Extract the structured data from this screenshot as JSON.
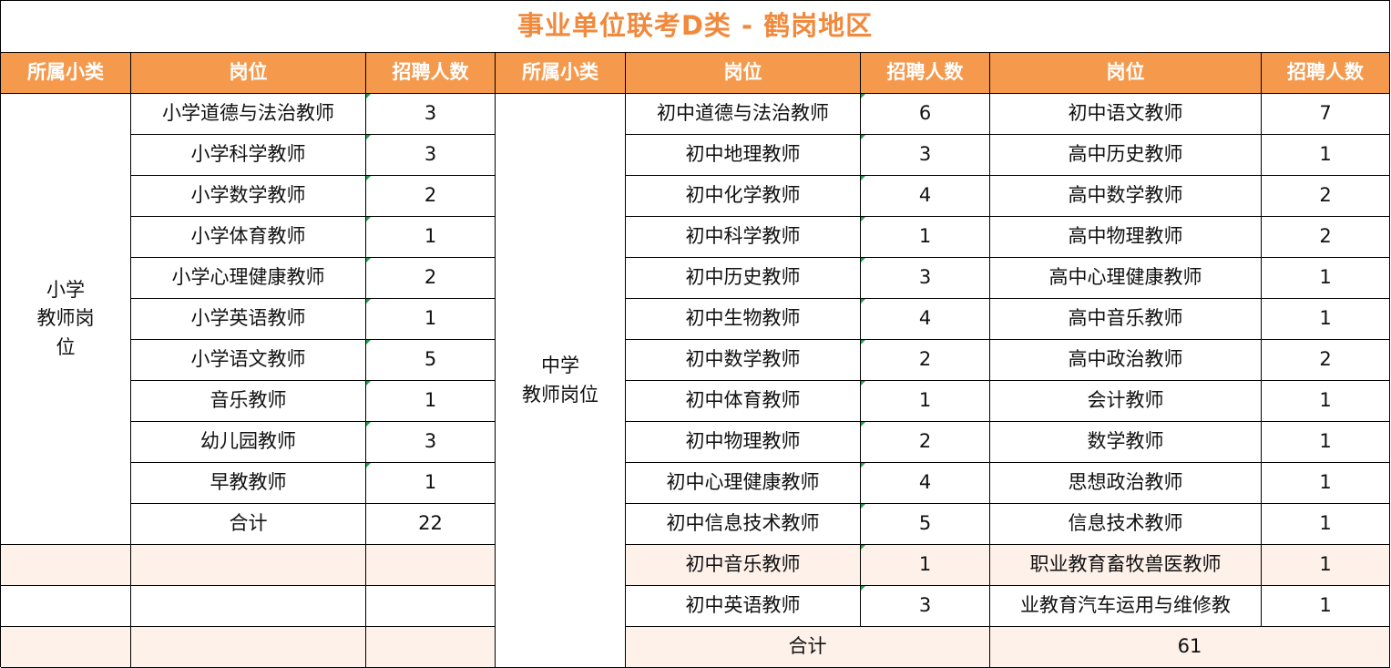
{
  "title": "事业单位联考D类 - 鹤岗地区",
  "headers": [
    "所属小类",
    "岗位",
    "招聘人数",
    "所属小类",
    "岗位",
    "招聘人数",
    "岗位",
    "招聘人数"
  ],
  "primary": {
    "category_lines": [
      "小学",
      "教师岗",
      "位"
    ],
    "rows": [
      {
        "post": "小学道德与法治教师",
        "count": "3"
      },
      {
        "post": "小学科学教师",
        "count": "3"
      },
      {
        "post": "小学数学教师",
        "count": "2"
      },
      {
        "post": "小学体育教师",
        "count": "1"
      },
      {
        "post": "小学心理健康教师",
        "count": "2"
      },
      {
        "post": "小学英语教师",
        "count": "1"
      },
      {
        "post": "小学语文教师",
        "count": "5"
      },
      {
        "post": "音乐教师",
        "count": "1"
      },
      {
        "post": "幼儿园教师",
        "count": "3"
      },
      {
        "post": "早教教师",
        "count": "1"
      }
    ],
    "total_label": "合计",
    "total": "22"
  },
  "secondary": {
    "category_lines": [
      "中学",
      "教师岗位"
    ],
    "rows": [
      {
        "post_a": "初中道德与法治教师",
        "count_a": "6",
        "post_b": "初中语文教师",
        "count_b": "7"
      },
      {
        "post_a": "初中地理教师",
        "count_a": "3",
        "post_b": "高中历史教师",
        "count_b": "1"
      },
      {
        "post_a": "初中化学教师",
        "count_a": "4",
        "post_b": "高中数学教师",
        "count_b": "2"
      },
      {
        "post_a": "初中科学教师",
        "count_a": "1",
        "post_b": "高中物理教师",
        "count_b": "2"
      },
      {
        "post_a": "初中历史教师",
        "count_a": "3",
        "post_b": "高中心理健康教师",
        "count_b": "1"
      },
      {
        "post_a": "初中生物教师",
        "count_a": "4",
        "post_b": "高中音乐教师",
        "count_b": "1"
      },
      {
        "post_a": "初中数学教师",
        "count_a": "2",
        "post_b": "高中政治教师",
        "count_b": "2"
      },
      {
        "post_a": "初中体育教师",
        "count_a": "1",
        "post_b": "会计教师",
        "count_b": "1"
      },
      {
        "post_a": "初中物理教师",
        "count_a": "2",
        "post_b": "数学教师",
        "count_b": "1"
      },
      {
        "post_a": "初中心理健康教师",
        "count_a": "4",
        "post_b": "思想政治教师",
        "count_b": "1"
      },
      {
        "post_a": "初中信息技术教师",
        "count_a": "5",
        "post_b": "信息技术教师",
        "count_b": "1"
      },
      {
        "post_a": "初中音乐教师",
        "count_a": "1",
        "post_b": "职业教育畜牧兽医教师",
        "count_b": "1"
      },
      {
        "post_a": "初中英语教师",
        "count_a": "3",
        "post_b": "业教育汽车运用与维修教",
        "count_b": "1"
      }
    ],
    "total_label": "合计",
    "total": "61"
  }
}
